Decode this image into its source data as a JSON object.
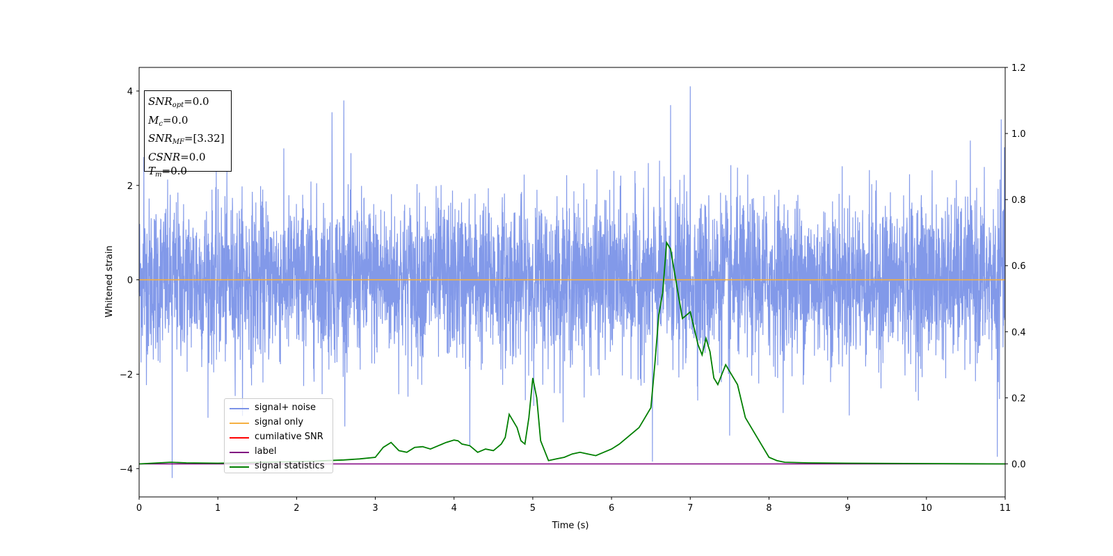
{
  "chart_data": {
    "type": "line",
    "xlabel": "Time (s)",
    "ylabel": "Whitened strain",
    "xlim": [
      0,
      11
    ],
    "ylim_left": [
      -4.6,
      4.5
    ],
    "ylim_right": [
      -0.1,
      1.2
    ],
    "x_ticks": [
      "0",
      "1",
      "2",
      "3",
      "4",
      "5",
      "6",
      "7",
      "8",
      "9",
      "10",
      "11"
    ],
    "y_ticks_left": [
      "4",
      "2",
      "0",
      "−2",
      "−4"
    ],
    "y_ticks_right": [
      "1.2",
      "1.0",
      "0.8",
      "0.6",
      "0.4",
      "0.2",
      "0.0"
    ],
    "legend_placement": "lower-left",
    "grid": false,
    "series": [
      {
        "name": "signal+ noise",
        "color": "#7b93e8",
        "axis": "left",
        "description_range": [
          -1.5,
          1.5
        ],
        "peaks": [
          {
            "x": 0.06,
            "y": 2.6
          },
          {
            "x": 0.42,
            "y": -4.2
          },
          {
            "x": 2.45,
            "y": 3.55
          },
          {
            "x": 2.6,
            "y": 3.8
          },
          {
            "x": 4.2,
            "y": -3.5
          },
          {
            "x": 6.52,
            "y": -3.85
          },
          {
            "x": 6.75,
            "y": 3.7
          },
          {
            "x": 7.0,
            "y": 4.1
          },
          {
            "x": 7.5,
            "y": -3.3
          },
          {
            "x": 10.95,
            "y": 3.4
          },
          {
            "x": 10.9,
            "y": -3.75
          }
        ]
      },
      {
        "name": "signal only",
        "color": "#f5b041",
        "axis": "left",
        "x": [
          0,
          11
        ],
        "y": [
          0,
          0
        ]
      },
      {
        "name": "cumilative SNR",
        "color": "#ff0000",
        "axis": "right",
        "x": [],
        "y": []
      },
      {
        "name": "label",
        "color": "#800080",
        "axis": "right",
        "x": [
          0,
          11
        ],
        "y": [
          0,
          0
        ]
      },
      {
        "name": "signal statistics",
        "color": "#007f00",
        "axis": "right",
        "x": [
          0,
          0.4,
          0.6,
          1.0,
          1.4,
          1.8,
          2.2,
          2.4,
          2.6,
          2.8,
          3.0,
          3.1,
          3.2,
          3.3,
          3.4,
          3.5,
          3.6,
          3.7,
          3.8,
          3.9,
          4.0,
          4.05,
          4.1,
          4.2,
          4.3,
          4.4,
          4.5,
          4.6,
          4.65,
          4.7,
          4.8,
          4.85,
          4.9,
          4.95,
          5.0,
          5.05,
          5.1,
          5.2,
          5.3,
          5.4,
          5.5,
          5.6,
          5.7,
          5.8,
          5.9,
          6.0,
          6.1,
          6.2,
          6.3,
          6.35,
          6.4,
          6.5,
          6.55,
          6.6,
          6.65,
          6.7,
          6.75,
          6.8,
          6.9,
          7.0,
          7.05,
          7.1,
          7.15,
          7.2,
          7.25,
          7.3,
          7.35,
          7.4,
          7.45,
          7.5,
          7.6,
          7.7,
          7.8,
          7.9,
          8.0,
          8.1,
          8.2,
          8.5,
          9.0,
          10.0,
          11.0
        ],
        "y": [
          0.0,
          0.005,
          0.003,
          0.002,
          0.004,
          0.006,
          0.008,
          0.01,
          0.012,
          0.015,
          0.02,
          0.05,
          0.065,
          0.04,
          0.035,
          0.05,
          0.052,
          0.045,
          0.055,
          0.065,
          0.072,
          0.07,
          0.06,
          0.055,
          0.035,
          0.045,
          0.04,
          0.06,
          0.08,
          0.15,
          0.11,
          0.07,
          0.06,
          0.14,
          0.26,
          0.2,
          0.07,
          0.01,
          0.015,
          0.02,
          0.03,
          0.035,
          0.03,
          0.025,
          0.035,
          0.045,
          0.06,
          0.08,
          0.1,
          0.11,
          0.13,
          0.17,
          0.3,
          0.45,
          0.52,
          0.67,
          0.65,
          0.58,
          0.44,
          0.46,
          0.41,
          0.36,
          0.33,
          0.38,
          0.34,
          0.26,
          0.24,
          0.27,
          0.3,
          0.28,
          0.24,
          0.14,
          0.1,
          0.06,
          0.02,
          0.01,
          0.005,
          0.003,
          0.002,
          0.001,
          0.0
        ]
      }
    ]
  },
  "stats_box": {
    "snr_opt_value": "=0.0",
    "mc_value": "=0.0",
    "snr_mf_value": "=[3.32]",
    "csnr_value": "=0.0",
    "tm_value": "=0.0"
  }
}
